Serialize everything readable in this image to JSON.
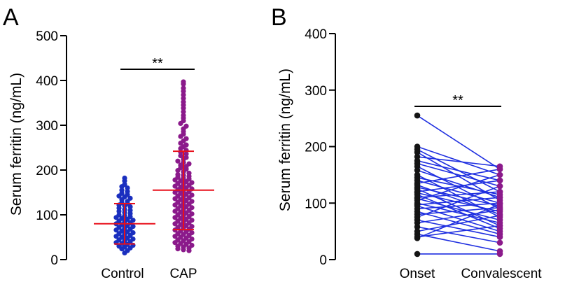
{
  "chart_data": [
    {
      "panel": "A",
      "type": "scatter",
      "subtype": "dot-plot",
      "ylabel": "Serum ferritin (ng/mL)",
      "xlabel": "",
      "ylim": [
        0,
        500
      ],
      "yticks": [
        0,
        100,
        200,
        300,
        400,
        500
      ],
      "categories": [
        "Control",
        "CAP"
      ],
      "colors": {
        "Control": "#1a2fbf",
        "CAP": "#8b1a8b",
        "stats": "#e8101c"
      },
      "summary": [
        {
          "group": "Control",
          "mean": 80,
          "sd_low": 35,
          "sd_high": 125
        },
        {
          "group": "CAP",
          "mean": 155,
          "sd_low": 67,
          "sd_high": 242
        }
      ],
      "significance": "**",
      "points": {
        "Control": [
          182,
          176,
          168,
          163,
          160,
          155,
          152,
          148,
          145,
          142,
          140,
          137,
          134,
          130,
          127,
          125,
          122,
          120,
          118,
          115,
          112,
          110,
          108,
          105,
          103,
          100,
          98,
          96,
          94,
          92,
          90,
          88,
          86,
          84,
          82,
          80,
          78,
          76,
          74,
          72,
          70,
          68,
          66,
          64,
          62,
          60,
          58,
          56,
          54,
          52,
          50,
          48,
          46,
          44,
          42,
          40,
          38,
          36,
          34,
          32,
          30,
          28,
          26,
          24,
          20,
          15
        ],
        "CAP": [
          397,
          392,
          383,
          376,
          368,
          360,
          352,
          345,
          338,
          330,
          322,
          316,
          310,
          304,
          298,
          292,
          286,
          280,
          275,
          270,
          265,
          260,
          256,
          252,
          248,
          244,
          240,
          236,
          232,
          228,
          224,
          220,
          217,
          214,
          211,
          208,
          205,
          202,
          199,
          196,
          193,
          190,
          188,
          186,
          184,
          182,
          180,
          178,
          176,
          174,
          172,
          170,
          168,
          166,
          164,
          162,
          160,
          158,
          156,
          154,
          152,
          150,
          148,
          146,
          144,
          142,
          140,
          138,
          136,
          134,
          132,
          130,
          128,
          126,
          124,
          122,
          120,
          118,
          116,
          114,
          112,
          110,
          108,
          106,
          104,
          102,
          100,
          98,
          96,
          94,
          92,
          90,
          88,
          86,
          84,
          82,
          80,
          78,
          76,
          74,
          72,
          70,
          68,
          66,
          64,
          62,
          60,
          58,
          56,
          54,
          52,
          50,
          48,
          46,
          44,
          42,
          40,
          38,
          36,
          34,
          32,
          30,
          28,
          26,
          24,
          22,
          20
        ]
      }
    },
    {
      "panel": "B",
      "type": "line",
      "subtype": "paired",
      "ylabel": "Serum ferritin (ng/mL)",
      "xlabel": "",
      "ylim": [
        0,
        400
      ],
      "yticks": [
        0,
        100,
        200,
        300,
        400
      ],
      "categories": [
        "Onset",
        "Convalescent"
      ],
      "colors": {
        "line": "#1f2fe0",
        "Onset": "#141414",
        "Convalescent": "#8b1a8b"
      },
      "significance": "**",
      "pairs": [
        [
          255,
          160
        ],
        [
          200,
          150
        ],
        [
          195,
          120
        ],
        [
          190,
          105
        ],
        [
          182,
          165
        ],
        [
          175,
          140
        ],
        [
          170,
          130
        ],
        [
          165,
          90
        ],
        [
          158,
          110
        ],
        [
          150,
          75
        ],
        [
          145,
          115
        ],
        [
          140,
          100
        ],
        [
          135,
          160
        ],
        [
          132,
          80
        ],
        [
          128,
          95
        ],
        [
          125,
          60
        ],
        [
          120,
          140
        ],
        [
          118,
          85
        ],
        [
          115,
          55
        ],
        [
          110,
          120
        ],
        [
          108,
          70
        ],
        [
          105,
          150
        ],
        [
          100,
          65
        ],
        [
          97,
          110
        ],
        [
          95,
          50
        ],
        [
          90,
          100
        ],
        [
          85,
          45
        ],
        [
          80,
          92
        ],
        [
          75,
          130
        ],
        [
          70,
          40
        ],
        [
          65,
          88
        ],
        [
          58,
          30
        ],
        [
          50,
          78
        ],
        [
          45,
          15
        ],
        [
          40,
          60
        ],
        [
          38,
          98
        ],
        [
          10,
          10
        ]
      ]
    }
  ]
}
